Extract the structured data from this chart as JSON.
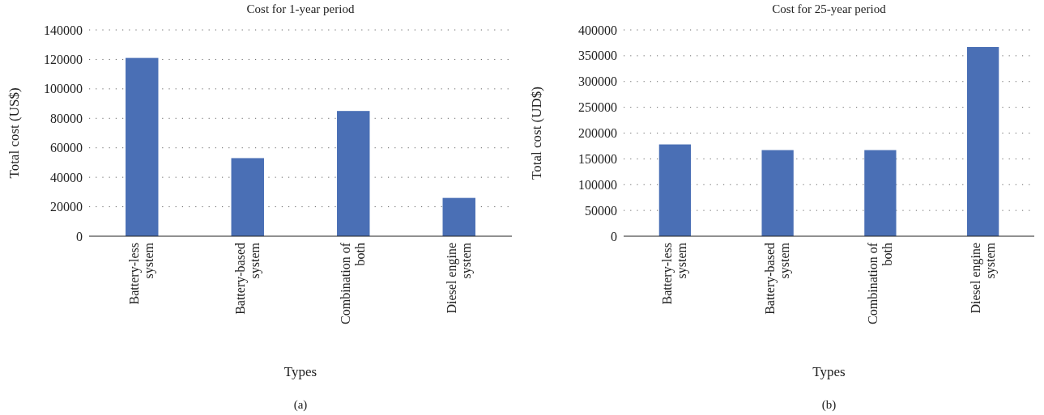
{
  "chart_data": [
    {
      "type": "bar",
      "title": "Cost for 1-year period",
      "xlabel": "Types",
      "ylabel": "Total cost (US$)",
      "categories": [
        "Battery-less system",
        "Battery-based system",
        "Combination of both",
        "Diesel engine system"
      ],
      "values": [
        121000,
        53000,
        85000,
        26000
      ],
      "color": "#4a6fb5",
      "ylim": [
        0,
        140000
      ],
      "yticks": [
        0,
        20000,
        40000,
        60000,
        80000,
        100000,
        120000,
        140000
      ],
      "grid": "y",
      "annotations": [
        "(a)"
      ]
    },
    {
      "type": "bar",
      "title": "Cost for 25-year period",
      "xlabel": "Types",
      "ylabel": "Total cost (UD$)",
      "categories": [
        "Battery-less system",
        "Battery-based system",
        "Combination of both",
        "Diesel engine system"
      ],
      "values": [
        178000,
        167000,
        167000,
        367000
      ],
      "color": "#4a6fb5",
      "ylim": [
        0,
        400000
      ],
      "yticks": [
        0,
        50000,
        100000,
        150000,
        200000,
        250000,
        300000,
        350000,
        400000
      ],
      "grid": "y",
      "annotations": [
        "(b)"
      ]
    }
  ]
}
